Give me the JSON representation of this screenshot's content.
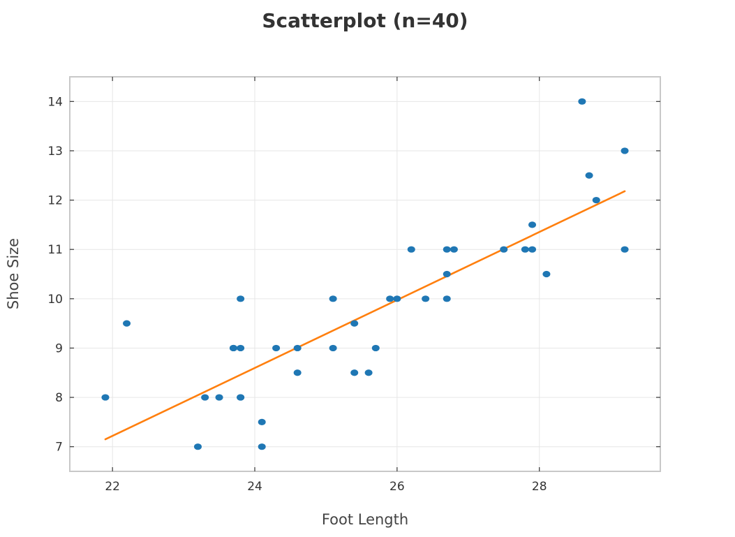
{
  "chart_data": {
    "type": "scatter",
    "title": "Scatterplot (n=40)",
    "xlabel": "Foot Length",
    "ylabel": "Shoe Size",
    "xlim": [
      21.4,
      29.7
    ],
    "ylim": [
      6.5,
      14.5
    ],
    "xticks": [
      22,
      24,
      26,
      28
    ],
    "yticks": [
      7,
      8,
      9,
      10,
      11,
      12,
      13,
      14
    ],
    "grid": true,
    "legend": "none",
    "colors": {
      "points": "#1f77b4",
      "fit": "#ff7f0e"
    },
    "series": [
      {
        "x": [
          21.9,
          22.2,
          23.2,
          23.3,
          23.5,
          23.7,
          23.8,
          23.8,
          23.8,
          24.1,
          24.1,
          24.3,
          24.6,
          24.6,
          25.1,
          25.1,
          25.4,
          25.4,
          25.6,
          25.7,
          25.9,
          26.0,
          26.2,
          26.4,
          26.7,
          26.7,
          26.7,
          26.8,
          27.5,
          27.8,
          27.9,
          27.9,
          28.1,
          28.6,
          28.7,
          28.8,
          29.2,
          29.2,
          23.8,
          23.7
        ],
        "y": [
          8.0,
          9.5,
          7.0,
          8.0,
          8.0,
          9.0,
          10.0,
          9.0,
          8.0,
          7.5,
          7.0,
          9.0,
          9.0,
          8.5,
          10.0,
          9.0,
          9.5,
          8.5,
          8.5,
          9.0,
          10.0,
          10.0,
          11.0,
          10.0,
          11.0,
          10.5,
          10.0,
          11.0,
          11.0,
          11.0,
          11.5,
          11.0,
          10.5,
          14.0,
          12.5,
          12.0,
          13.0,
          11.0,
          8.0,
          9.0
        ]
      }
    ],
    "fit_line": {
      "x": [
        21.9,
        29.2
      ],
      "y": [
        7.15,
        12.18
      ]
    }
  }
}
